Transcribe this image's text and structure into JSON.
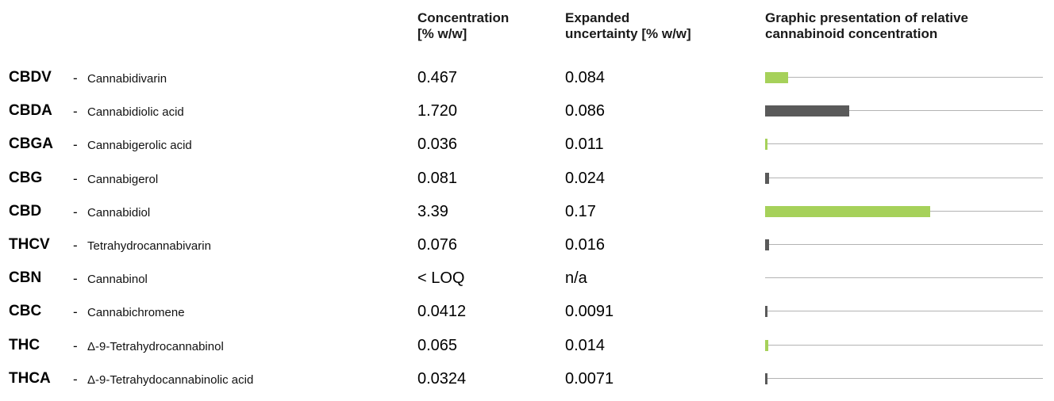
{
  "headers": {
    "concentration": [
      "Concentration",
      "[% w/w]"
    ],
    "uncertainty": [
      "Expanded",
      "uncertainty [% w/w]"
    ],
    "graphic": [
      "Graphic presentation of relative",
      "cannabinoid concentration"
    ]
  },
  "colors": {
    "acid_form": "#5a5a5a",
    "neutral_form": "#a6d15a",
    "axis_line": "#b3b3b3"
  },
  "scale_max_percent": 5.7,
  "rows": [
    {
      "abbr": "CBDV",
      "dash": "-",
      "name": "Cannabidivarin",
      "concentration": "0.467",
      "uncertainty": "0.084",
      "value": 0.467,
      "color": "#a6d15a"
    },
    {
      "abbr": "CBDA",
      "dash": "-",
      "name": "Cannabidiolic acid",
      "concentration": "1.720",
      "uncertainty": "0.086",
      "value": 1.72,
      "color": "#5a5a5a"
    },
    {
      "abbr": "CBGA",
      "dash": "-",
      "name": "Cannabigerolic acid",
      "concentration": "0.036",
      "uncertainty": "0.011",
      "value": 0.036,
      "color": "#a6d15a"
    },
    {
      "abbr": "CBG",
      "dash": "-",
      "name": "Cannabigerol",
      "concentration": "0.081",
      "uncertainty": "0.024",
      "value": 0.081,
      "color": "#5a5a5a"
    },
    {
      "abbr": "CBD",
      "dash": "-",
      "name": "Cannabidiol",
      "concentration": "3.39",
      "uncertainty": "0.17",
      "value": 3.39,
      "color": "#a6d15a"
    },
    {
      "abbr": "THCV",
      "dash": "-",
      "name": "Tetrahydrocannabivarin",
      "concentration": "0.076",
      "uncertainty": "0.016",
      "value": 0.076,
      "color": "#5a5a5a"
    },
    {
      "abbr": "CBN",
      "dash": "-",
      "name": "Cannabinol",
      "concentration": "< LOQ",
      "uncertainty": "n/a",
      "value": 0,
      "color": "#a6d15a"
    },
    {
      "abbr": "CBC",
      "dash": "-",
      "name": "Cannabichromene",
      "concentration": "0.0412",
      "uncertainty": "0.0091",
      "value": 0.0412,
      "color": "#5a5a5a"
    },
    {
      "abbr": "THC",
      "dash": "-",
      "name": "Δ-9-Tetrahydrocannabinol",
      "concentration": "0.065",
      "uncertainty": "0.014",
      "value": 0.065,
      "color": "#a6d15a"
    },
    {
      "abbr": "THCA",
      "dash": "-",
      "name": "Δ-9-Tetrahydocannabinolic acid",
      "concentration": "0.0324",
      "uncertainty": "0.0071",
      "value": 0.0324,
      "color": "#5a5a5a"
    }
  ]
}
